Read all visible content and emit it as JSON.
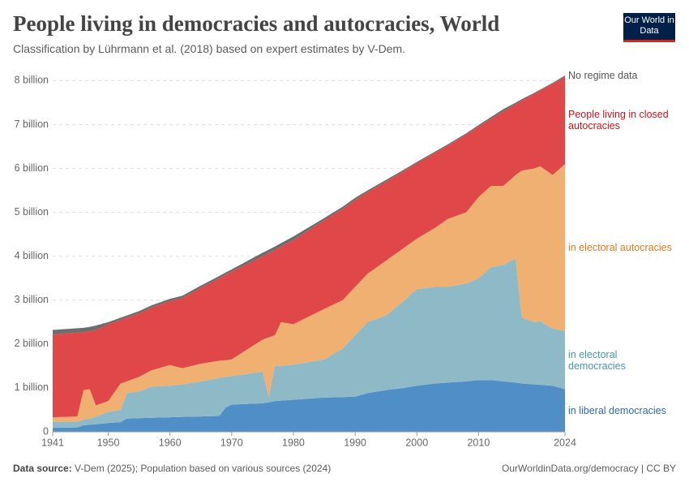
{
  "chart_data": {
    "type": "stacked_area",
    "title": "People living in democracies and autocracies, World",
    "subtitle": "Classification by Lührmann et al. (2018) based on expert estimates by V-Dem.",
    "logo": "Our World in Data",
    "source_label": "Data source:",
    "source": "V-Dem (2025); Population based on various sources (2024)",
    "footer_right": "OurWorldinData.org/democracy | CC BY",
    "x": [
      1941,
      1945,
      1946,
      1947,
      1948,
      1950,
      1952,
      1953,
      1955,
      1957,
      1960,
      1962,
      1965,
      1968,
      1969,
      1970,
      1975,
      1976,
      1977,
      1978,
      1980,
      1985,
      1988,
      1990,
      1992,
      1995,
      1998,
      2000,
      2003,
      2005,
      2008,
      2010,
      2012,
      2014,
      2016,
      2017,
      2019,
      2020,
      2022,
      2024
    ],
    "xlim": [
      1941,
      2024
    ],
    "xticks": [
      1941,
      1950,
      1960,
      1970,
      1980,
      1990,
      2000,
      2010,
      2024
    ],
    "ylim": [
      0,
      8.1
    ],
    "yticks": [
      0,
      {
        "value": 1,
        "label": "1 billion"
      },
      {
        "value": 2,
        "label": "2 billion"
      },
      {
        "value": 3,
        "label": "3 billion"
      },
      {
        "value": 4,
        "label": "4 billion"
      },
      {
        "value": 5,
        "label": "5 billion"
      },
      {
        "value": 6,
        "label": "6 billion"
      },
      {
        "value": 7,
        "label": "7 billion"
      },
      {
        "value": 8,
        "label": "8 billion"
      }
    ],
    "grid": true,
    "series": [
      {
        "name": "in liberal democracies",
        "color": "#4f8ec6",
        "label_color": "#2f6aa8",
        "values": [
          0.09,
          0.1,
          0.15,
          0.16,
          0.17,
          0.2,
          0.22,
          0.3,
          0.31,
          0.32,
          0.33,
          0.34,
          0.35,
          0.36,
          0.55,
          0.62,
          0.65,
          0.67,
          0.7,
          0.71,
          0.73,
          0.78,
          0.79,
          0.8,
          0.88,
          0.95,
          1.0,
          1.05,
          1.1,
          1.12,
          1.15,
          1.18,
          1.18,
          1.15,
          1.12,
          1.1,
          1.08,
          1.07,
          1.05,
          0.97
        ]
      },
      {
        "name": "in electoral democracies",
        "color": "#8ebac8",
        "label_color": "#4a94ae",
        "values": [
          0.14,
          0.13,
          0.13,
          0.14,
          0.18,
          0.25,
          0.28,
          0.58,
          0.61,
          0.71,
          0.72,
          0.74,
          0.8,
          0.87,
          0.7,
          0.65,
          0.72,
          0.13,
          0.8,
          0.79,
          0.8,
          0.87,
          1.11,
          1.4,
          1.62,
          1.7,
          2.0,
          2.2,
          2.2,
          2.18,
          2.23,
          2.32,
          2.57,
          2.65,
          2.83,
          1.5,
          1.42,
          1.45,
          1.3,
          1.33
        ]
      },
      {
        "name": "in electoral autocracies",
        "color": "#f0b071",
        "label_color": "#d97b1e",
        "values": [
          0.1,
          0.12,
          0.67,
          0.67,
          0.25,
          0.25,
          0.6,
          0.27,
          0.33,
          0.37,
          0.47,
          0.37,
          0.4,
          0.39,
          0.38,
          0.38,
          0.73,
          1.35,
          0.7,
          1.0,
          0.92,
          1.15,
          1.1,
          1.1,
          1.1,
          1.25,
          1.2,
          1.15,
          1.35,
          1.55,
          1.62,
          1.85,
          1.85,
          1.8,
          1.9,
          3.35,
          3.5,
          3.53,
          3.5,
          3.8
        ]
      },
      {
        "name": "People living in closed autocracies",
        "color": "#e04749",
        "label_color": "#c8141b",
        "values": [
          1.89,
          1.91,
          1.32,
          1.32,
          1.72,
          1.75,
          1.45,
          1.45,
          1.45,
          1.43,
          1.46,
          1.6,
          1.73,
          1.88,
          1.95,
          2.0,
          1.9,
          1.92,
          1.94,
          1.72,
          1.92,
          2.02,
          2.08,
          1.98,
          1.86,
          1.8,
          1.75,
          1.72,
          1.71,
          1.67,
          1.77,
          1.61,
          1.53,
          1.7,
          1.61,
          1.6,
          1.7,
          1.73,
          2.08,
          2.0
        ]
      },
      {
        "name": "No regime data",
        "color": "#6d6d6d",
        "label_color": "#555555",
        "values": [
          0.1,
          0.1,
          0.1,
          0.1,
          0.1,
          0.05,
          0.05,
          0.05,
          0.05,
          0.05,
          0.05,
          0.05,
          0.05,
          0.05,
          0.05,
          0.05,
          0.08,
          0.08,
          0.08,
          0.08,
          0.08,
          0.05,
          0.05,
          0.05,
          0.04,
          0.04,
          0.03,
          0.03,
          0.03,
          0.03,
          0.03,
          0.03,
          0.04,
          0.05,
          0.04,
          0.03,
          0.02,
          0.02,
          0.02,
          0.02
        ]
      }
    ]
  }
}
